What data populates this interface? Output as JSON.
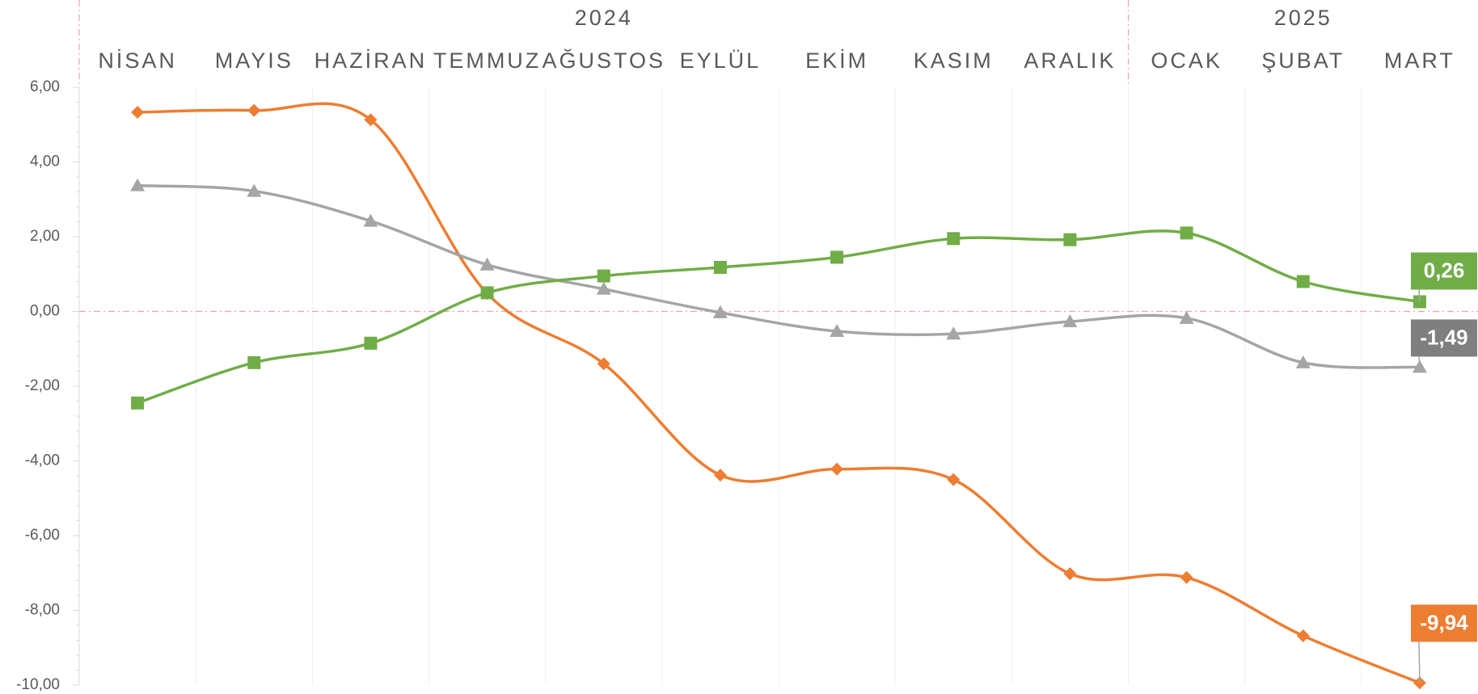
{
  "chart_data": {
    "type": "line",
    "categories": [
      "NİSAN",
      "MAYIS",
      "HAZİRAN",
      "TEMMUZ",
      "AĞUSTOS",
      "EYLÜL",
      "EKİM",
      "KASIM",
      "ARALIK",
      "OCAK",
      "ŞUBAT",
      "MART"
    ],
    "x_groups": [
      {
        "label": "2024",
        "count": 9
      },
      {
        "label": "2025",
        "count": 3
      }
    ],
    "series": [
      {
        "color": "#ed7d31",
        "marker": "diamond",
        "label_color": "#ed7d31",
        "values": [
          5.33,
          5.38,
          5.13,
          0.48,
          -1.4,
          -4.38,
          -4.22,
          -4.5,
          -7.02,
          -7.12,
          -8.68,
          -9.94
        ],
        "value_labels": [
          null,
          null,
          null,
          null,
          null,
          null,
          null,
          null,
          null,
          null,
          null,
          "-9,94"
        ]
      },
      {
        "color": "#a5a5a5",
        "marker": "triangle",
        "label_color": "#7f7f7f",
        "values": [
          3.37,
          3.22,
          2.42,
          1.25,
          0.6,
          -0.03,
          -0.53,
          -0.6,
          -0.27,
          -0.18,
          -1.37,
          -1.49
        ],
        "value_labels": [
          null,
          null,
          null,
          null,
          null,
          null,
          null,
          null,
          null,
          null,
          null,
          "-1,49"
        ]
      },
      {
        "color": "#70ad47",
        "marker": "square",
        "label_color": "#70ad47",
        "values": [
          -2.45,
          -1.37,
          -0.85,
          0.5,
          0.95,
          1.18,
          1.45,
          1.95,
          1.92,
          2.1,
          0.8,
          0.26
        ],
        "value_labels": [
          null,
          null,
          null,
          null,
          null,
          null,
          null,
          null,
          null,
          null,
          null,
          "0,26"
        ]
      }
    ],
    "ylim": [
      -10,
      6
    ],
    "yticks": [
      {
        "value": -10,
        "label": "-10,00"
      },
      {
        "value": -8,
        "label": "-8,00"
      },
      {
        "value": -6,
        "label": "-6,00"
      },
      {
        "value": -4,
        "label": "-4,00"
      },
      {
        "value": -2,
        "label": "-2,00"
      },
      {
        "value": 0,
        "label": "0,00"
      },
      {
        "value": 2,
        "label": "2,00"
      },
      {
        "value": 4,
        "label": "4,00"
      },
      {
        "value": 6,
        "label": "6,00"
      }
    ],
    "zero_line": true,
    "grid": true
  }
}
